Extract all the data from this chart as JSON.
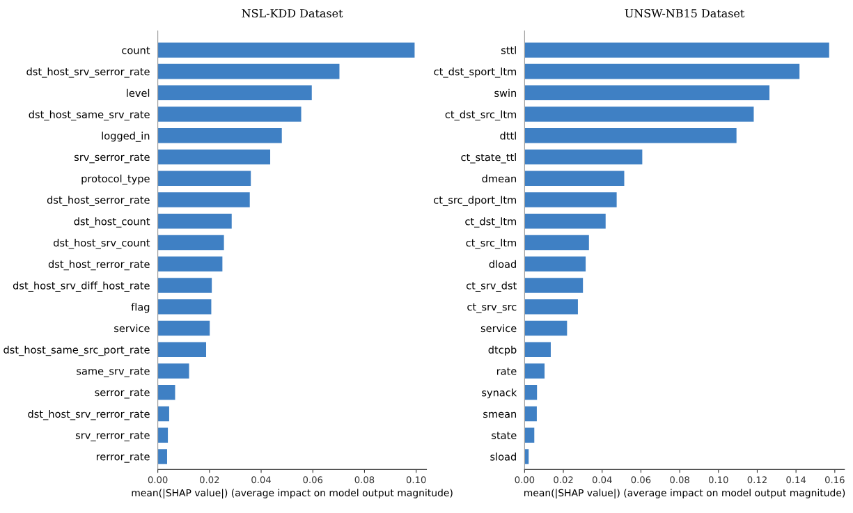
{
  "chart_data": [
    {
      "type": "bar",
      "orientation": "horizontal",
      "title": "NSL-KDD Dataset",
      "xlabel": "mean(|SHAP value|) (average impact on model output magnitude)",
      "color": "#3f80c4",
      "grid": false,
      "legend": false,
      "categories": [
        "count",
        "dst_host_srv_serror_rate",
        "level",
        "dst_host_same_srv_rate",
        "logged_in",
        "srv_serror_rate",
        "protocol_type",
        "dst_host_serror_rate",
        "dst_host_count",
        "dst_host_srv_count",
        "dst_host_rerror_rate",
        "dst_host_srv_diff_host_rate",
        "flag",
        "service",
        "dst_host_same_src_port_rate",
        "same_srv_rate",
        "serror_rate",
        "dst_host_srv_rerror_rate",
        "srv_rerror_rate",
        "rerror_rate"
      ],
      "values": [
        0.0994,
        0.0703,
        0.0596,
        0.0555,
        0.048,
        0.0435,
        0.036,
        0.0356,
        0.0286,
        0.0256,
        0.025,
        0.0209,
        0.0207,
        0.0201,
        0.0187,
        0.0121,
        0.0067,
        0.0044,
        0.0039,
        0.0036
      ],
      "xlim": [
        0,
        0.104
      ],
      "xticks": [
        {
          "value": 0,
          "label": "0.00"
        },
        {
          "value": 0.02,
          "label": "0.02"
        },
        {
          "value": 0.04,
          "label": "0.04"
        },
        {
          "value": 0.06,
          "label": "0.06"
        },
        {
          "value": 0.08,
          "label": "0.08"
        },
        {
          "value": 0.1,
          "label": "0.10"
        }
      ]
    },
    {
      "type": "bar",
      "orientation": "horizontal",
      "title": "UNSW-NB15 Dataset",
      "xlabel": "mean(|SHAP value|) (average impact on model output magnitude)",
      "color": "#3f80c4",
      "grid": false,
      "legend": false,
      "categories": [
        "sttl",
        "ct_dst_sport_ltm",
        "swin",
        "ct_dst_src_ltm",
        "dttl",
        "ct_state_ttl",
        "dmean",
        "ct_src_dport_ltm",
        "ct_dst_ltm",
        "ct_src_ltm",
        "dload",
        "ct_srv_dst",
        "ct_srv_src",
        "service",
        "dtcpb",
        "rate",
        "synack",
        "smean",
        "state",
        "sload"
      ],
      "values": [
        0.1571,
        0.1418,
        0.1263,
        0.1182,
        0.1093,
        0.0607,
        0.0514,
        0.0475,
        0.0418,
        0.0332,
        0.0315,
        0.0301,
        0.0275,
        0.0219,
        0.0135,
        0.0103,
        0.0064,
        0.0063,
        0.005,
        0.0021
      ],
      "xlim": [
        0,
        0.165
      ],
      "xticks": [
        {
          "value": 0,
          "label": "0.00"
        },
        {
          "value": 0.02,
          "label": "0.02"
        },
        {
          "value": 0.04,
          "label": "0.04"
        },
        {
          "value": 0.06,
          "label": "0.06"
        },
        {
          "value": 0.08,
          "label": "0.08"
        },
        {
          "value": 0.1,
          "label": "0.10"
        },
        {
          "value": 0.12,
          "label": "0.12"
        },
        {
          "value": 0.14,
          "label": "0.14"
        },
        {
          "value": 0.16,
          "label": "0.16"
        }
      ]
    }
  ]
}
